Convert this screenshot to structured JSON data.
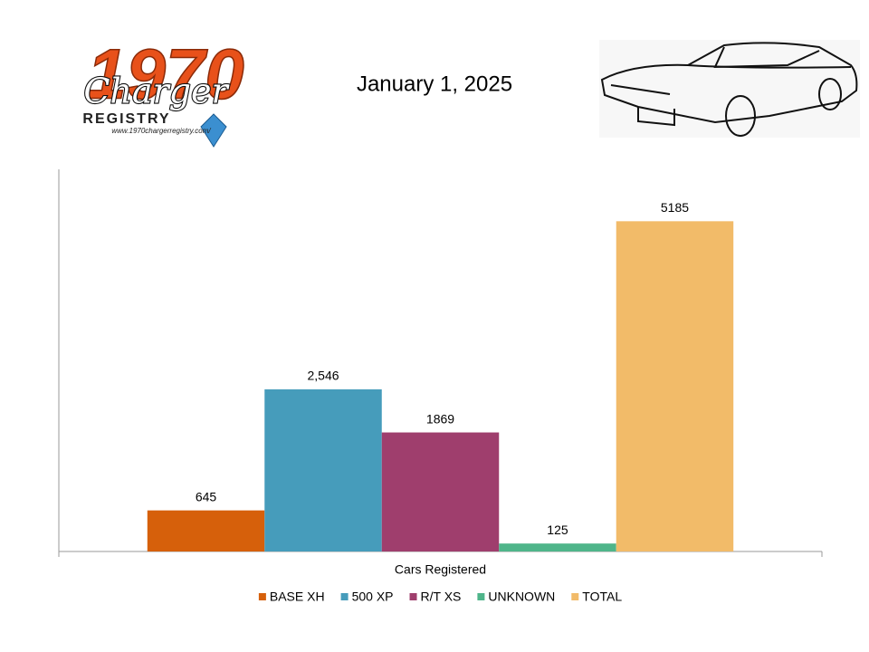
{
  "logo": {
    "year": "1970",
    "script": "Charger",
    "word": "REGISTRY",
    "url": "www.1970chargerregistry.com/"
  },
  "chart_data": {
    "type": "bar",
    "title": "January 1, 2025",
    "categories": [
      "Cars Registered"
    ],
    "series": [
      {
        "name": "BASE XH",
        "color": "#d6600b",
        "values": [
          645
        ]
      },
      {
        "name": "500 XP",
        "color": "#469cbb",
        "values": [
          2546
        ],
        "value_labels": [
          "2,546"
        ]
      },
      {
        "name": "R/T XS",
        "color": "#9f3e6d",
        "values": [
          1869
        ]
      },
      {
        "name": "UNKNOWN",
        "color": "#4fb58a",
        "values": [
          125
        ]
      },
      {
        "name": "TOTAL",
        "color": "#f2bb69",
        "values": [
          5185
        ]
      }
    ],
    "ylim": [
      0,
      6000
    ],
    "legend": "bottom"
  }
}
